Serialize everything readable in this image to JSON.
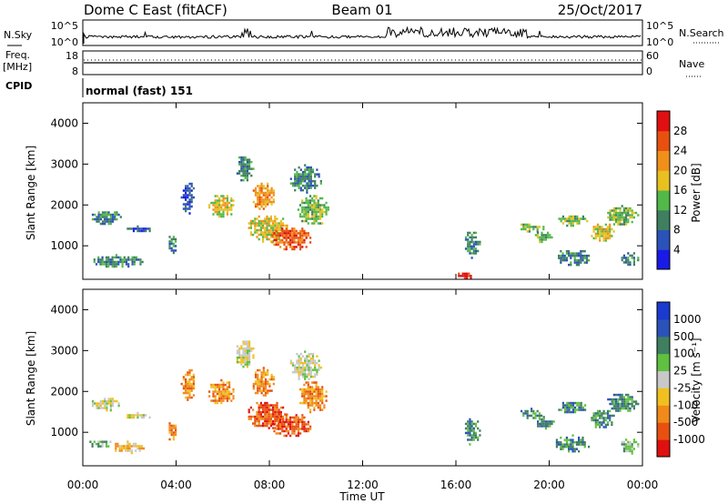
{
  "header": {
    "station": "Dome C East (fitACF)",
    "beam": "Beam 01",
    "date": "25/Oct/2017"
  },
  "sky_panel": {
    "left_label": "N.Sky",
    "right_label": "N.Search",
    "left_ticks": [
      "10^5",
      "10^0"
    ],
    "right_ticks": [
      "10^5",
      "10^0"
    ]
  },
  "freq_panel": {
    "left_label_1": "Freq.",
    "left_label_2": "[MHz]",
    "right_label": "Nave",
    "left_ticks": [
      "18",
      "8"
    ],
    "right_ticks": [
      "60",
      "0"
    ]
  },
  "cpid": {
    "label": "CPID",
    "text": "normal (fast) 151"
  },
  "colors": {
    "power": [
      "#1a1ae6",
      "#2a52b8",
      "#3f7f60",
      "#52b848",
      "#e8c020",
      "#f0901a",
      "#e85010",
      "#e01010"
    ],
    "velocity": [
      "#e01010",
      "#e85010",
      "#f08a1a",
      "#f0c020",
      "#c8c8c8",
      "#60c040",
      "#3f7f60",
      "#2a52b8",
      "#1a3ad0"
    ]
  },
  "chart_data": [
    {
      "type": "heatmap",
      "panel": "power",
      "ylabel": "Slant Range [km]",
      "xlim": [
        0,
        24
      ],
      "ylim": [
        180,
        4500
      ],
      "yticks": [
        1000,
        2000,
        3000,
        4000
      ],
      "x_ticklabels": [
        "00:00",
        "04:00",
        "08:00",
        "12:00",
        "16:00",
        "20:00",
        "00:00"
      ],
      "colorbar": {
        "label": "Power [dB]",
        "range": [
          0,
          32
        ],
        "ticks": [
          "4",
          "8",
          "12",
          "16",
          "20",
          "24",
          "28"
        ]
      },
      "regions": [
        {
          "t0": 0.2,
          "t1": 2.6,
          "r0": 500,
          "r1": 800,
          "level": 2
        },
        {
          "t0": 0.3,
          "t1": 1.6,
          "r0": 1550,
          "r1": 1900,
          "level": 2
        },
        {
          "t0": 1.8,
          "t1": 2.9,
          "r0": 1350,
          "r1": 1500,
          "level": 1
        },
        {
          "t0": 3.6,
          "t1": 4.0,
          "r0": 800,
          "r1": 1300,
          "level": 2
        },
        {
          "t0": 4.2,
          "t1": 4.8,
          "r0": 1800,
          "r1": 2600,
          "level": 1
        },
        {
          "t0": 5.3,
          "t1": 6.5,
          "r0": 1700,
          "r1": 2300,
          "level": 4
        },
        {
          "t0": 6.5,
          "t1": 7.3,
          "r0": 2600,
          "r1": 3300,
          "level": 2
        },
        {
          "t0": 7.2,
          "t1": 8.2,
          "r0": 1900,
          "r1": 2600,
          "level": 5
        },
        {
          "t0": 7.0,
          "t1": 8.8,
          "r0": 1100,
          "r1": 1800,
          "level": 4
        },
        {
          "t0": 8.0,
          "t1": 9.8,
          "r0": 900,
          "r1": 1500,
          "level": 6
        },
        {
          "t0": 9.2,
          "t1": 10.5,
          "r0": 1500,
          "r1": 2300,
          "level": 3
        },
        {
          "t0": 8.8,
          "t1": 10.2,
          "r0": 2300,
          "r1": 3000,
          "level": 2
        },
        {
          "t0": 16.0,
          "t1": 16.8,
          "r0": 200,
          "r1": 400,
          "level": 7
        },
        {
          "t0": 16.3,
          "t1": 17.0,
          "r0": 700,
          "r1": 1400,
          "level": 2
        },
        {
          "t0": 18.6,
          "t1": 19.8,
          "r0": 1350,
          "r1": 1600,
          "level": 3
        },
        {
          "t0": 19.3,
          "t1": 20.2,
          "r0": 1100,
          "r1": 1400,
          "level": 3
        },
        {
          "t0": 20.3,
          "t1": 21.6,
          "r0": 1500,
          "r1": 1800,
          "level": 3
        },
        {
          "t0": 20.2,
          "t1": 21.8,
          "r0": 550,
          "r1": 950,
          "level": 2
        },
        {
          "t0": 21.7,
          "t1": 22.8,
          "r0": 1100,
          "r1": 1600,
          "level": 4
        },
        {
          "t0": 22.4,
          "t1": 23.8,
          "r0": 1500,
          "r1": 2000,
          "level": 3
        },
        {
          "t0": 23.0,
          "t1": 23.8,
          "r0": 500,
          "r1": 900,
          "level": 2
        }
      ]
    },
    {
      "type": "heatmap",
      "panel": "velocity",
      "ylabel": "Slant Range [km]",
      "xlabel": "Time UT",
      "xlim": [
        0,
        24
      ],
      "ylim": [
        180,
        4500
      ],
      "yticks": [
        1000,
        2000,
        3000,
        4000
      ],
      "x_ticklabels": [
        "00:00",
        "04:00",
        "08:00",
        "12:00",
        "16:00",
        "20:00",
        "00:00"
      ],
      "colorbar": {
        "label": "Velocity [m s⁻¹]",
        "ticks": [
          "1000",
          "500",
          "100",
          "25",
          "-25",
          "-100",
          "-500",
          "-1000"
        ]
      },
      "regions": [
        {
          "t0": 0.2,
          "t1": 1.2,
          "r0": 650,
          "r1": 850,
          "level": 5
        },
        {
          "t0": 1.2,
          "t1": 2.6,
          "r0": 500,
          "r1": 800,
          "level": 3
        },
        {
          "t0": 0.3,
          "t1": 1.6,
          "r0": 1550,
          "r1": 1900,
          "level": 4
        },
        {
          "t0": 1.8,
          "t1": 2.9,
          "r0": 1350,
          "r1": 1500,
          "level": 4
        },
        {
          "t0": 3.6,
          "t1": 4.0,
          "r0": 800,
          "r1": 1300,
          "level": 2
        },
        {
          "t0": 4.2,
          "t1": 4.8,
          "r0": 1800,
          "r1": 2600,
          "level": 2
        },
        {
          "t0": 5.3,
          "t1": 6.5,
          "r0": 1700,
          "r1": 2300,
          "level": 2
        },
        {
          "t0": 6.5,
          "t1": 7.3,
          "r0": 2600,
          "r1": 3300,
          "level": 4
        },
        {
          "t0": 7.2,
          "t1": 8.2,
          "r0": 1900,
          "r1": 2600,
          "level": 2
        },
        {
          "t0": 7.0,
          "t1": 8.8,
          "r0": 1100,
          "r1": 1800,
          "level": 1
        },
        {
          "t0": 8.0,
          "t1": 9.8,
          "r0": 900,
          "r1": 1500,
          "level": 1
        },
        {
          "t0": 9.2,
          "t1": 10.5,
          "r0": 1500,
          "r1": 2300,
          "level": 2
        },
        {
          "t0": 8.8,
          "t1": 10.2,
          "r0": 2300,
          "r1": 3000,
          "level": 4
        },
        {
          "t0": 16.3,
          "t1": 17.0,
          "r0": 700,
          "r1": 1400,
          "level": 6
        },
        {
          "t0": 18.6,
          "t1": 19.8,
          "r0": 1350,
          "r1": 1600,
          "level": 6
        },
        {
          "t0": 19.3,
          "t1": 20.2,
          "r0": 1100,
          "r1": 1400,
          "level": 6
        },
        {
          "t0": 20.3,
          "t1": 21.6,
          "r0": 1500,
          "r1": 1800,
          "level": 6
        },
        {
          "t0": 20.2,
          "t1": 21.8,
          "r0": 550,
          "r1": 950,
          "level": 6
        },
        {
          "t0": 21.7,
          "t1": 22.8,
          "r0": 1100,
          "r1": 1600,
          "level": 6
        },
        {
          "t0": 22.4,
          "t1": 23.8,
          "r0": 1500,
          "r1": 2000,
          "level": 6
        },
        {
          "t0": 23.0,
          "t1": 23.8,
          "r0": 500,
          "r1": 900,
          "level": 5
        }
      ]
    }
  ]
}
